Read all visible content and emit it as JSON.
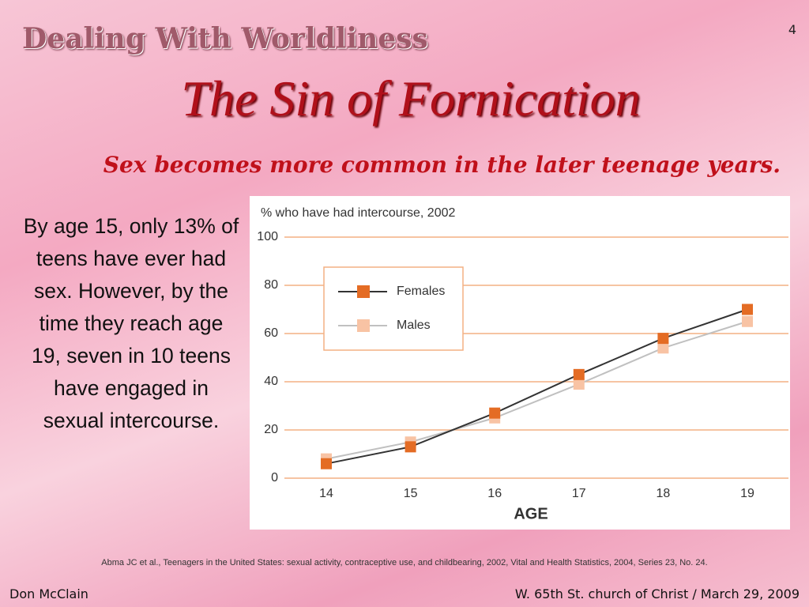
{
  "header": {
    "section": "Dealing With Worldliness",
    "title": "The Sin of Fornication",
    "subtitle": "Sex becomes more common in the later teenage years.",
    "page_number": "4"
  },
  "body": {
    "text": "By age 15, only 13% of teens have ever had sex. However, by the time they reach age 19, seven in 10 teens have engaged in sexual intercourse."
  },
  "citation": "Abma JC et al., Teenagers in the United States: sexual activity, contraceptive use, and childbearing, 2002, Vital and Health Statistics, 2004, Series 23, No. 24.",
  "footer": {
    "left": "Don McClain",
    "right": "W. 65th St. church of Christ / March 29, 2009"
  },
  "chart_data": {
    "type": "line",
    "title": "% who have had intercourse, 2002",
    "x_label": "AGE",
    "categories": [
      "14",
      "15",
      "16",
      "17",
      "18",
      "19"
    ],
    "series": [
      {
        "name": "Females",
        "color": "#e46c24",
        "line_color": "#333333",
        "values": [
          6,
          13,
          27,
          43,
          58,
          70
        ]
      },
      {
        "name": "Males",
        "color": "#f8c3a4",
        "line_color": "#c0c0c0",
        "values": [
          8,
          15,
          25,
          39,
          54,
          65
        ]
      }
    ],
    "ylim": [
      0,
      100
    ],
    "yticks": [
      0,
      20,
      40,
      60,
      80,
      100
    ],
    "grid": true,
    "legend": "upper left"
  }
}
